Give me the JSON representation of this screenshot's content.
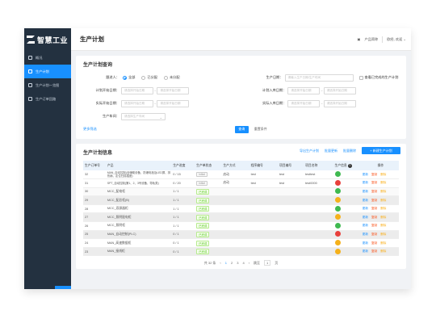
{
  "app": {
    "logo_text": "智慧工业"
  },
  "sidebar": {
    "items": [
      {
        "label": "概况"
      },
      {
        "label": "生产计划"
      },
      {
        "label": "生产计划一览图"
      },
      {
        "label": "生产订单回路"
      }
    ]
  },
  "topbar": {
    "title": "生产计划",
    "product_intro": "产品简称",
    "user": "欧经, 欢迎"
  },
  "query": {
    "title": "生产计划查询",
    "assignee_label": "跟进人：",
    "radios": [
      "全部",
      "已分配",
      "未分配"
    ],
    "plan_no_label": "生产日期：",
    "plan_no_placeholder": "请输入生产日期/生产时间",
    "checkbox_label": "查看已完成的生产计划",
    "plan_date_label": "计划开始日期：",
    "actual_date_label": "实际开始日期：",
    "plan_in_label": "计划入库日期：",
    "actual_in_label": "实际入库日期：",
    "date_placeholder": "请选择开始日期",
    "workshop_label": "生产车间：",
    "workshop_placeholder": "请选择生产车间",
    "collapse": "更多筛选",
    "search": "查询",
    "reset": "重置条件"
  },
  "table": {
    "title": "生产计划信息",
    "actions": {
      "import": "导出生产计划",
      "batch_edit": "批量更新",
      "batch_delete": "批量删除",
      "add": "+ 新建生产计划"
    },
    "headers": [
      "生产订单号",
      "产品",
      "生产进度",
      "生产单状态",
      "生产方式",
      "程序编号",
      "项目编号",
      "项目名称",
      "生产信息",
      "操作"
    ],
    "rows": [
      {
        "no": "32",
        "product": "MAN_自动控制(含辅助设备、防爆电柜及LED屏、排热扇、定位扫描插座)",
        "progress": "0 / 15",
        "status": "initial",
        "mode": "启动",
        "program": "test",
        "project_no": "test",
        "project_name": "testtest",
        "dot": "green"
      },
      {
        "no": "31",
        "product": "SPT_自动控制(第1、2、3号设备、导轨类)",
        "progress": "0 / 20",
        "status": "initial",
        "mode": "启动",
        "program": "test",
        "project_no": "test",
        "project_name": "test0000",
        "dot": "red"
      },
      {
        "no": "30",
        "product": "MCC_配电柜",
        "progress": "1 / 1",
        "status": "已完成",
        "mode": "",
        "program": "",
        "project_no": "",
        "project_name": "",
        "dot": "green"
      },
      {
        "no": "29",
        "product": "MCC_配总柜(B)",
        "progress": "1 / 1",
        "status": "已完成",
        "mode": "",
        "program": "",
        "project_no": "",
        "project_name": "",
        "dot": "orange"
      },
      {
        "no": "28",
        "product": "MCC_双源器柜",
        "progress": "1 / 1",
        "status": "已完成",
        "mode": "",
        "program": "",
        "project_no": "",
        "project_name": "",
        "dot": "green"
      },
      {
        "no": "27",
        "product": "MCC_照明配电柜",
        "progress": "1 / 1",
        "status": "已完成",
        "mode": "",
        "program": "",
        "project_no": "",
        "project_name": "",
        "dot": "orange"
      },
      {
        "no": "26",
        "product": "MCC_照明柜",
        "progress": "1 / 1",
        "status": "已完成",
        "mode": "",
        "program": "",
        "project_no": "",
        "project_name": "",
        "dot": "green"
      },
      {
        "no": "25",
        "product": "MAN_自动控制(PLC)",
        "progress": "0 / 1",
        "status": "已完成",
        "mode": "",
        "program": "",
        "project_no": "",
        "project_name": "",
        "dot": "red"
      },
      {
        "no": "24",
        "product": "MAN_高速数据柜",
        "progress": "0 / 1",
        "status": "已完成",
        "mode": "",
        "program": "",
        "project_no": "",
        "project_name": "",
        "dot": "orange"
      },
      {
        "no": "23",
        "product": "MAN_接线柜",
        "progress": "0 / 1",
        "status": "已完成",
        "mode": "",
        "program": "",
        "project_no": "",
        "project_name": "",
        "dot": "orange"
      }
    ],
    "ops": {
      "edit": "更新",
      "copy": "复制",
      "del": "删除"
    }
  },
  "pagination": {
    "total": "共 32 条",
    "prev": "‹",
    "pages": [
      "1",
      "2",
      "3",
      "4"
    ],
    "next": "›",
    "goto": "跳至",
    "page_input": "1",
    "page_unit": "页"
  },
  "colors": {
    "accent": "#1890ff",
    "sidebar": "#233140",
    "green": "#3fb950",
    "red": "#e8403c",
    "orange": "#f5b11b"
  }
}
